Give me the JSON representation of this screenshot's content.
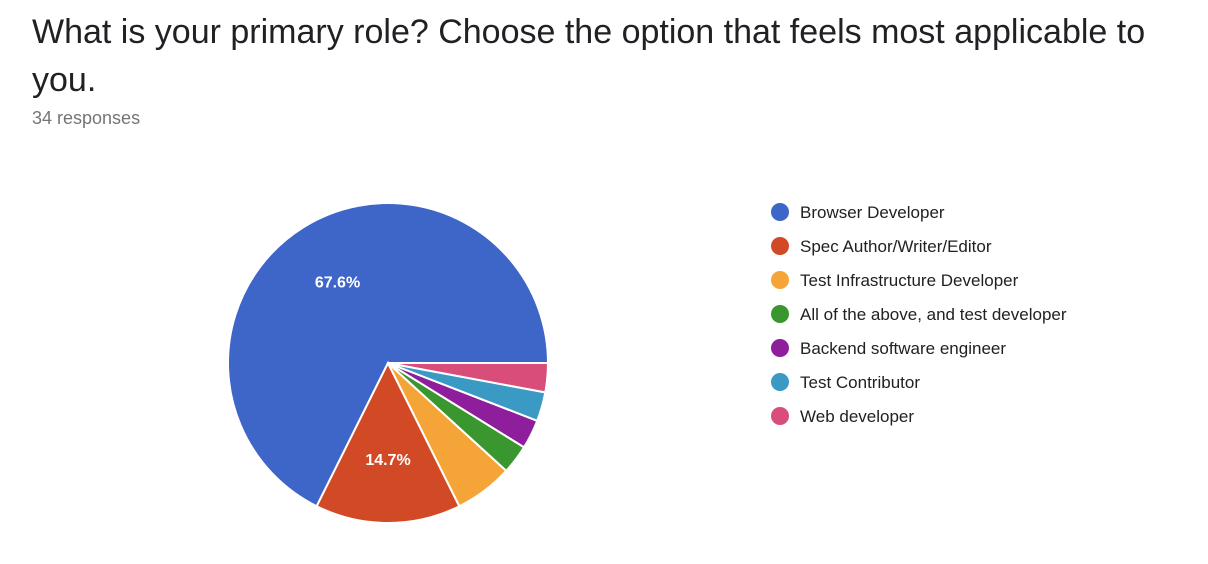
{
  "title": "What is your primary role? Choose the option that feels most applicable to you.",
  "subtitle": "34 responses",
  "chart_data": {
    "type": "pie",
    "total": 34,
    "categories": [
      "Browser Developer",
      "Spec Author/Writer/Editor",
      "Test Infrastructure Developer",
      "All of the above, and test developer",
      "Backend software engineer",
      "Test Contributor",
      "Web developer"
    ],
    "values": [
      23,
      5,
      2,
      1,
      1,
      1,
      1
    ],
    "percent_labels": [
      "67.6%",
      "14.7%",
      "",
      "",
      "",
      "",
      ""
    ],
    "colors": [
      "#3e66c8",
      "#d24926",
      "#f5a537",
      "#3a962f",
      "#8e1e9c",
      "#3b9ac4",
      "#d84d7a"
    ],
    "legend_position": "right"
  }
}
